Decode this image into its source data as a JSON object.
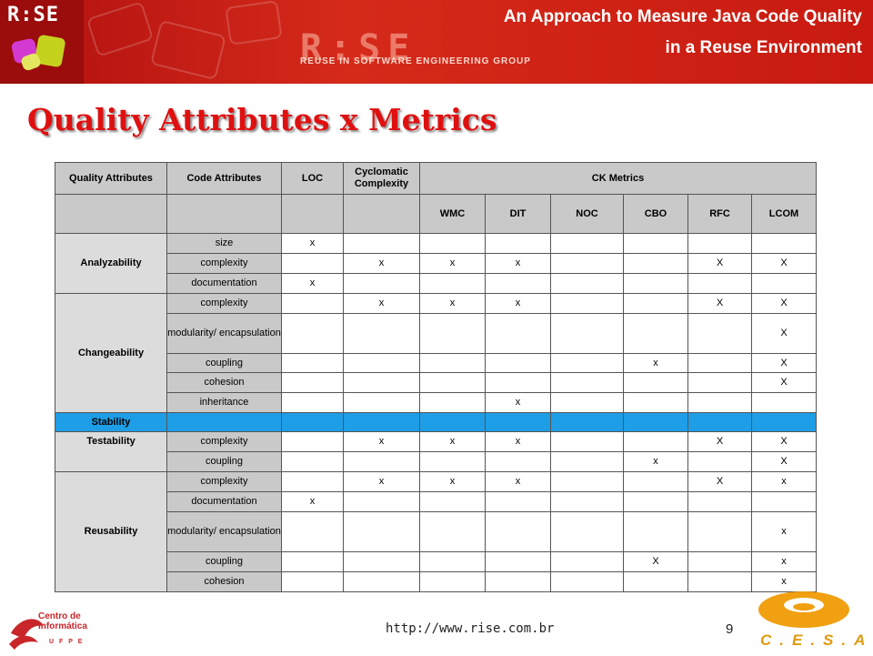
{
  "header": {
    "logo_text": "R:SE",
    "watermark": "R:SE",
    "watermark_sub": "REUSE IN SOFTWARE ENGINEERING GROUP",
    "title_line1": "An Approach to Measure Java Code Quality",
    "title_line2": "in a Reuse Environment"
  },
  "slide": {
    "title": "Quality Attributes x Metrics"
  },
  "table": {
    "headers": {
      "quality_attributes": "Quality Attributes",
      "code_attributes": "Code Attributes",
      "loc": "LOC",
      "cyclomatic": "Cyclomatic Complexity",
      "ck_metrics": "CK Metrics",
      "wmc": "WMC",
      "dit": "DIT",
      "noc": "NOC",
      "cbo": "CBO",
      "rfc": "RFC",
      "lcom": "LCOM"
    },
    "groups": {
      "analyzability": "Analyzability",
      "changeability": "Changeability",
      "stability": "Stability",
      "testability": "Testability",
      "reusability": "Reusability"
    },
    "rows": [
      {
        "code": "size",
        "loc": "x",
        "cc": "",
        "wmc": "",
        "dit": "",
        "noc": "",
        "cbo": "",
        "rfc": "",
        "lcom": ""
      },
      {
        "code": "complexity",
        "loc": "",
        "cc": "x",
        "wmc": "x",
        "dit": "x",
        "noc": "",
        "cbo": "",
        "rfc": "X",
        "lcom": "X"
      },
      {
        "code": "documentation",
        "loc": "x",
        "cc": "",
        "wmc": "",
        "dit": "",
        "noc": "",
        "cbo": "",
        "rfc": "",
        "lcom": ""
      },
      {
        "code": "complexity",
        "loc": "",
        "cc": "x",
        "wmc": "x",
        "dit": "x",
        "noc": "",
        "cbo": "",
        "rfc": "X",
        "lcom": "X"
      },
      {
        "code": "modularity/ encapsulation",
        "loc": "",
        "cc": "",
        "wmc": "",
        "dit": "",
        "noc": "",
        "cbo": "",
        "rfc": "",
        "lcom": "X"
      },
      {
        "code": "coupling",
        "loc": "",
        "cc": "",
        "wmc": "",
        "dit": "",
        "noc": "",
        "cbo": "x",
        "rfc": "",
        "lcom": "X"
      },
      {
        "code": "cohesion",
        "loc": "",
        "cc": "",
        "wmc": "",
        "dit": "",
        "noc": "",
        "cbo": "",
        "rfc": "",
        "lcom": "X"
      },
      {
        "code": "inheritance",
        "loc": "",
        "cc": "",
        "wmc": "",
        "dit": "x",
        "noc": "",
        "cbo": "",
        "rfc": "",
        "lcom": ""
      },
      {
        "code": "",
        "loc": "",
        "cc": "",
        "wmc": "",
        "dit": "",
        "noc": "",
        "cbo": "",
        "rfc": "",
        "lcom": ""
      },
      {
        "code": "complexity",
        "loc": "",
        "cc": "x",
        "wmc": "x",
        "dit": "x",
        "noc": "",
        "cbo": "",
        "rfc": "X",
        "lcom": "X"
      },
      {
        "code": "coupling",
        "loc": "",
        "cc": "",
        "wmc": "",
        "dit": "",
        "noc": "",
        "cbo": "x",
        "rfc": "",
        "lcom": "X"
      },
      {
        "code": "complexity",
        "loc": "",
        "cc": "x",
        "wmc": "x",
        "dit": "x",
        "noc": "",
        "cbo": "",
        "rfc": "X",
        "lcom": "x"
      },
      {
        "code": "documentation",
        "loc": "x",
        "cc": "",
        "wmc": "",
        "dit": "",
        "noc": "",
        "cbo": "",
        "rfc": "",
        "lcom": ""
      },
      {
        "code": "modularity/ encapsulation",
        "loc": "",
        "cc": "",
        "wmc": "",
        "dit": "",
        "noc": "",
        "cbo": "",
        "rfc": "",
        "lcom": "x"
      },
      {
        "code": "coupling",
        "loc": "",
        "cc": "",
        "wmc": "",
        "dit": "",
        "noc": "",
        "cbo": "X",
        "rfc": "",
        "lcom": "x"
      },
      {
        "code": "cohesion",
        "loc": "",
        "cc": "",
        "wmc": "",
        "dit": "",
        "noc": "",
        "cbo": "",
        "rfc": "",
        "lcom": "x"
      }
    ]
  },
  "footer": {
    "url": "http://www.rise.com.br",
    "page": "9",
    "left_logo": "Centro de Informática",
    "left_logo_sub": "U F P E",
    "right_logo": "C.E.S.A.R"
  },
  "colors": {
    "banner": "#c81a10",
    "title": "#e01010",
    "header_gray": "#c9c9c9",
    "stability_blue": "#1e9ee6",
    "cesar_orange": "#e09a10"
  }
}
